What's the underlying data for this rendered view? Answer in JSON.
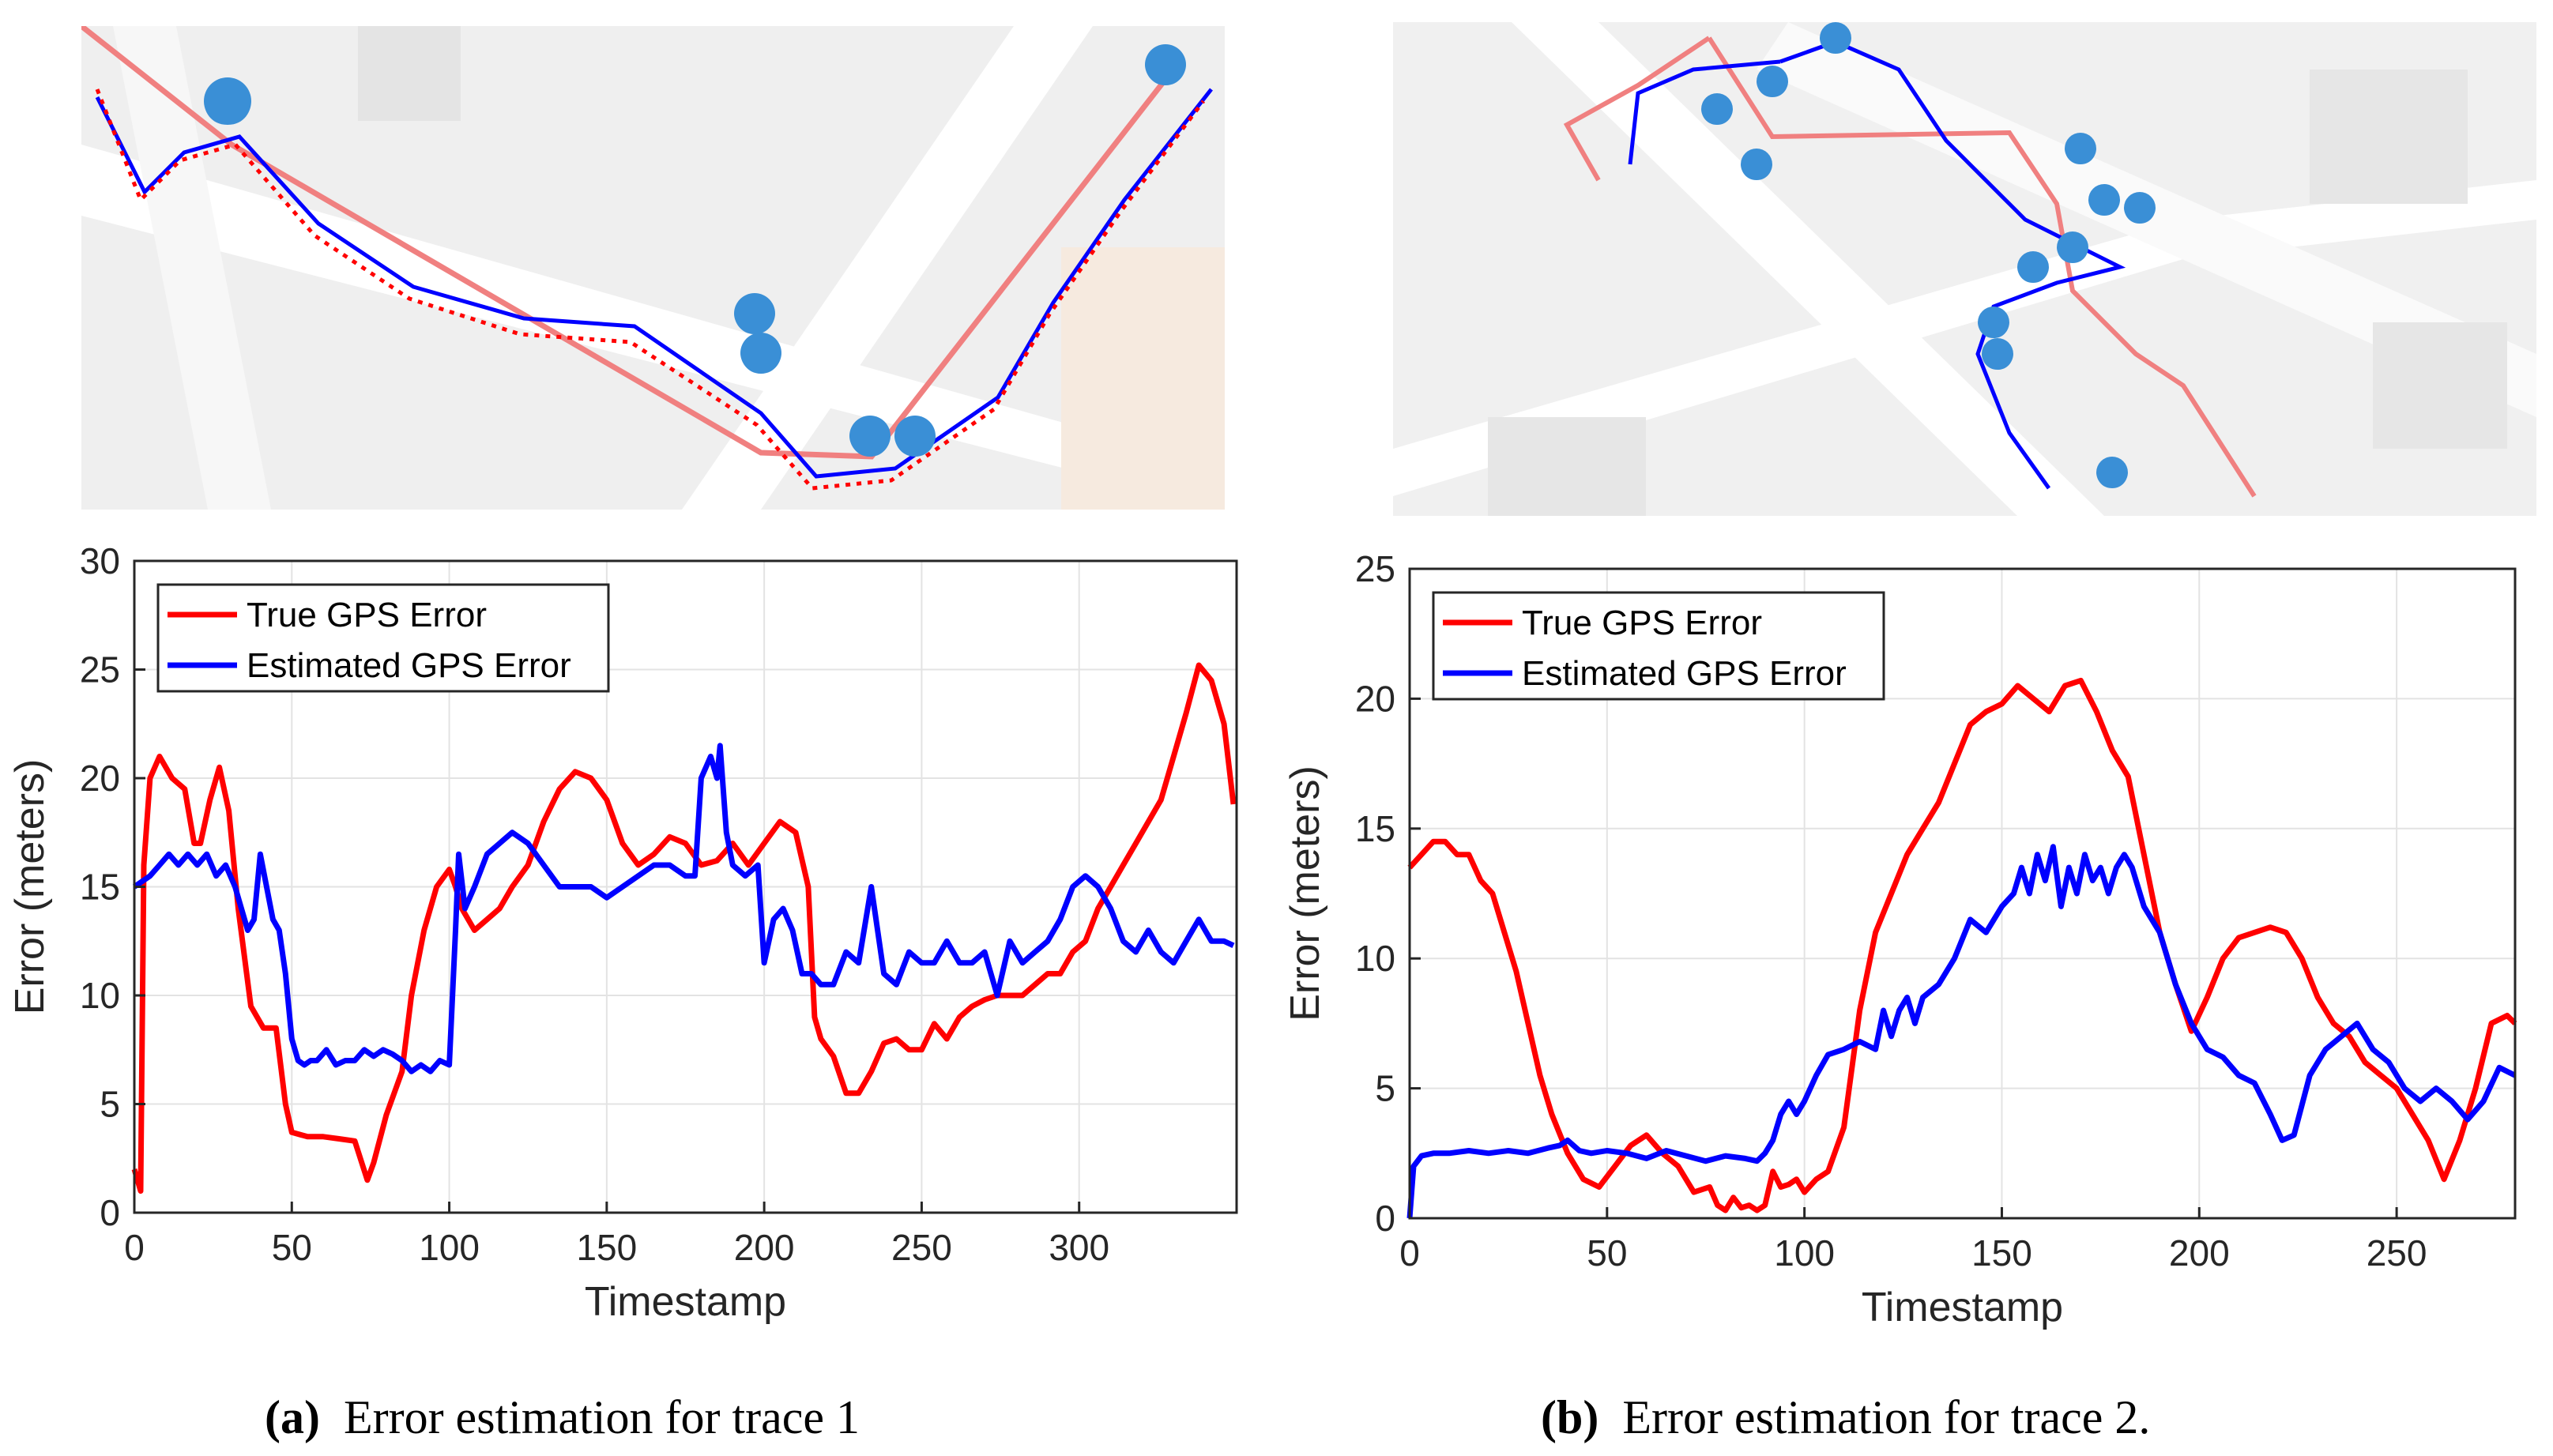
{
  "maps": [
    {
      "name": "trace-1-map",
      "alt": "Map of trace 1 with true and estimated GPS paths"
    },
    {
      "name": "trace-2-map",
      "alt": "Map of trace 2 with true and estimated GPS paths"
    }
  ],
  "legend": {
    "true_label": "True GPS Error",
    "est_label": "Estimated GPS Error"
  },
  "colors": {
    "true": "#ff0000",
    "est": "#0000ff",
    "route": "#f08080",
    "marker": "#3a8fd6"
  },
  "captions": [
    {
      "tag": "(a)",
      "text": "Error estimation for trace 1"
    },
    {
      "tag": "(b)",
      "text": "Error estimation for trace 2."
    }
  ],
  "chart_data": [
    {
      "type": "line",
      "title": "",
      "xlabel": "Timestamp",
      "ylabel": "Error (meters)",
      "xlim": [
        0,
        350
      ],
      "ylim": [
        0,
        30
      ],
      "xticks": [
        0,
        50,
        100,
        150,
        200,
        250,
        300
      ],
      "yticks": [
        0,
        5,
        10,
        15,
        20,
        25,
        30
      ],
      "grid": true,
      "legend_position": "top-left",
      "series": [
        {
          "name": "True GPS Error",
          "color": "#ff0000",
          "x": [
            0,
            2,
            3,
            5,
            8,
            12,
            16,
            19,
            21,
            24,
            27,
            30,
            33,
            37,
            41,
            45,
            48,
            50,
            55,
            60,
            65,
            70,
            74,
            76,
            80,
            85,
            88,
            92,
            96,
            100,
            102,
            104,
            108,
            112,
            116,
            120,
            125,
            130,
            135,
            140,
            145,
            150,
            155,
            160,
            165,
            170,
            175,
            180,
            185,
            190,
            195,
            200,
            205,
            210,
            214,
            216,
            218,
            222,
            226,
            230,
            234,
            238,
            242,
            246,
            250,
            254,
            258,
            262,
            266,
            270,
            274,
            278,
            282,
            286,
            290,
            294,
            298,
            302,
            306,
            310,
            314,
            318,
            322,
            326,
            330,
            334,
            338,
            342,
            346,
            349
          ],
          "y": [
            2,
            1,
            16,
            20,
            21,
            20,
            19.5,
            17,
            17,
            19,
            20.5,
            18.5,
            14,
            9.5,
            8.5,
            8.5,
            5,
            3.7,
            3.5,
            3.5,
            3.4,
            3.3,
            1.5,
            2.3,
            4.5,
            6.5,
            10,
            13,
            15,
            15.8,
            15,
            14,
            13,
            13.5,
            14,
            15,
            16,
            18,
            19.5,
            20.3,
            20,
            19,
            17,
            16,
            16.5,
            17.3,
            17,
            16,
            16.2,
            17,
            16,
            17,
            18,
            17.5,
            15,
            9,
            8,
            7.2,
            5.5,
            5.5,
            6.5,
            7.8,
            8,
            7.5,
            7.5,
            8.7,
            8,
            9,
            9.5,
            9.8,
            10,
            10,
            10,
            10.5,
            11,
            11,
            12,
            12.5,
            14,
            15,
            16,
            17,
            18,
            19,
            21,
            23,
            25.2,
            24.5,
            22.5,
            18.8
          ]
        },
        {
          "name": "Estimated GPS Error",
          "color": "#0000ff",
          "x": [
            0,
            5,
            8,
            11,
            14,
            17,
            20,
            23,
            26,
            29,
            32,
            34,
            36,
            38,
            40,
            42,
            44,
            46,
            48,
            50,
            52,
            54,
            56,
            58,
            61,
            64,
            67,
            70,
            73,
            76,
            79,
            82,
            85,
            88,
            91,
            94,
            97,
            100,
            102,
            103,
            105,
            108,
            112,
            116,
            120,
            125,
            130,
            135,
            140,
            145,
            150,
            155,
            160,
            165,
            170,
            175,
            178,
            180,
            183,
            185,
            186,
            188,
            190,
            194,
            198,
            200,
            203,
            206,
            209,
            212,
            215,
            218,
            222,
            226,
            230,
            234,
            238,
            242,
            246,
            250,
            254,
            258,
            262,
            266,
            270,
            274,
            278,
            282,
            286,
            290,
            294,
            298,
            302,
            306,
            310,
            314,
            318,
            322,
            326,
            330,
            334,
            338,
            342,
            346,
            349
          ],
          "y": [
            15,
            15.5,
            16,
            16.5,
            16,
            16.5,
            16,
            16.5,
            15.5,
            16,
            15,
            14,
            13,
            13.5,
            16.5,
            15,
            13.5,
            13,
            11,
            8,
            7,
            6.8,
            7,
            7,
            7.5,
            6.8,
            7,
            7,
            7.5,
            7.2,
            7.5,
            7.3,
            7,
            6.5,
            6.8,
            6.5,
            7,
            6.8,
            13,
            16.5,
            14,
            15,
            16.5,
            17,
            17.5,
            17,
            16,
            15,
            15,
            15,
            14.5,
            15,
            15.5,
            16,
            16,
            15.5,
            15.5,
            20,
            21,
            20,
            21.5,
            17.5,
            16,
            15.5,
            16,
            11.5,
            13.5,
            14,
            13,
            11,
            11,
            10.5,
            10.5,
            12,
            11.5,
            15,
            11,
            10.5,
            12,
            11.5,
            11.5,
            12.5,
            11.5,
            11.5,
            12,
            10,
            12.5,
            11.5,
            12,
            12.5,
            13.5,
            15,
            15.5,
            15,
            14,
            12.5,
            12,
            13,
            12,
            11.5,
            12.5,
            13.5,
            12.5,
            12.5,
            12.3
          ]
        }
      ]
    },
    {
      "type": "line",
      "title": "",
      "xlabel": "Timestamp",
      "ylabel": "Error (meters)",
      "xlim": [
        0,
        280
      ],
      "ylim": [
        0,
        25
      ],
      "xticks": [
        0,
        50,
        100,
        150,
        200,
        250
      ],
      "yticks": [
        0,
        5,
        10,
        15,
        20,
        25
      ],
      "grid": true,
      "legend_position": "top-left",
      "series": [
        {
          "name": "True GPS Error",
          "color": "#ff0000",
          "x": [
            0,
            3,
            6,
            9,
            12,
            15,
            18,
            21,
            24,
            27,
            30,
            33,
            36,
            40,
            44,
            48,
            52,
            56,
            60,
            64,
            68,
            72,
            76,
            78,
            80,
            82,
            84,
            86,
            88,
            90,
            92,
            94,
            96,
            98,
            100,
            103,
            106,
            110,
            114,
            118,
            122,
            126,
            130,
            134,
            138,
            142,
            146,
            150,
            154,
            158,
            162,
            166,
            170,
            174,
            178,
            182,
            186,
            190,
            194,
            198,
            202,
            206,
            210,
            214,
            218,
            222,
            226,
            230,
            234,
            238,
            242,
            246,
            250,
            254,
            258,
            262,
            266,
            270,
            274,
            278,
            280
          ],
          "y": [
            13.5,
            14,
            14.5,
            14.5,
            14,
            14,
            13,
            12.5,
            11,
            9.5,
            7.5,
            5.5,
            4,
            2.5,
            1.5,
            1.2,
            2,
            2.8,
            3.2,
            2.5,
            2,
            1,
            1.2,
            0.5,
            0.3,
            0.8,
            0.4,
            0.5,
            0.3,
            0.5,
            1.8,
            1.2,
            1.3,
            1.5,
            1,
            1.5,
            1.8,
            3.5,
            8,
            11,
            12.5,
            14,
            15,
            16,
            17.5,
            19,
            19.5,
            19.8,
            20.5,
            20,
            19.5,
            20.5,
            20.7,
            19.5,
            18,
            17,
            14,
            11,
            9,
            7.2,
            8.5,
            10,
            10.8,
            11,
            11.2,
            11,
            10,
            8.5,
            7.5,
            7,
            6,
            5.5,
            5,
            4,
            3,
            1.5,
            3,
            5,
            7.5,
            7.8,
            7.5
          ]
        },
        {
          "name": "Estimated GPS Error",
          "color": "#0000ff",
          "x": [
            0,
            1,
            3,
            6,
            10,
            15,
            20,
            25,
            30,
            35,
            38,
            40,
            43,
            46,
            50,
            55,
            60,
            65,
            70,
            75,
            80,
            85,
            88,
            90,
            92,
            94,
            96,
            98,
            100,
            103,
            106,
            110,
            114,
            118,
            120,
            122,
            124,
            126,
            128,
            130,
            134,
            138,
            142,
            146,
            150,
            153,
            155,
            157,
            159,
            161,
            163,
            165,
            167,
            169,
            171,
            173,
            175,
            177,
            179,
            181,
            183,
            186,
            190,
            194,
            198,
            202,
            206,
            210,
            214,
            218,
            221,
            224,
            228,
            232,
            236,
            240,
            244,
            248,
            252,
            256,
            260,
            264,
            268,
            272,
            276,
            280
          ],
          "y": [
            0,
            2,
            2.4,
            2.5,
            2.5,
            2.6,
            2.5,
            2.6,
            2.5,
            2.7,
            2.8,
            3,
            2.6,
            2.5,
            2.6,
            2.5,
            2.3,
            2.6,
            2.4,
            2.2,
            2.4,
            2.3,
            2.2,
            2.5,
            3,
            4,
            4.5,
            4,
            4.5,
            5.5,
            6.3,
            6.5,
            6.8,
            6.5,
            8,
            7,
            8,
            8.5,
            7.5,
            8.5,
            9,
            10,
            11.5,
            11,
            12,
            12.5,
            13.5,
            12.5,
            14,
            13,
            14.3,
            12,
            13.5,
            12.5,
            14,
            13,
            13.5,
            12.5,
            13.5,
            14,
            13.5,
            12,
            11,
            9,
            7.5,
            6.5,
            6.2,
            5.5,
            5.2,
            4,
            3,
            3.2,
            5.5,
            6.5,
            7,
            7.5,
            6.5,
            6,
            5,
            4.5,
            5,
            4.5,
            3.8,
            4.5,
            5.8,
            5.5
          ]
        }
      ]
    }
  ]
}
